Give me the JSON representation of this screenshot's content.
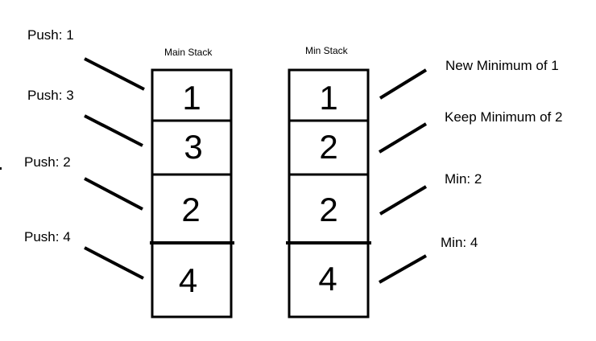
{
  "main_stack": {
    "title": "Main Stack",
    "values": [
      "1",
      "3",
      "2",
      "4"
    ],
    "operations": [
      "Push: 1",
      "Push: 3",
      "Push: 2",
      "Push: 4"
    ]
  },
  "min_stack": {
    "title": "Min Stack",
    "values": [
      "1",
      "2",
      "2",
      "4"
    ],
    "notes": [
      "New Minimum of 1",
      "Keep Minimum of 2",
      "Min: 2",
      "Min: 4"
    ]
  }
}
